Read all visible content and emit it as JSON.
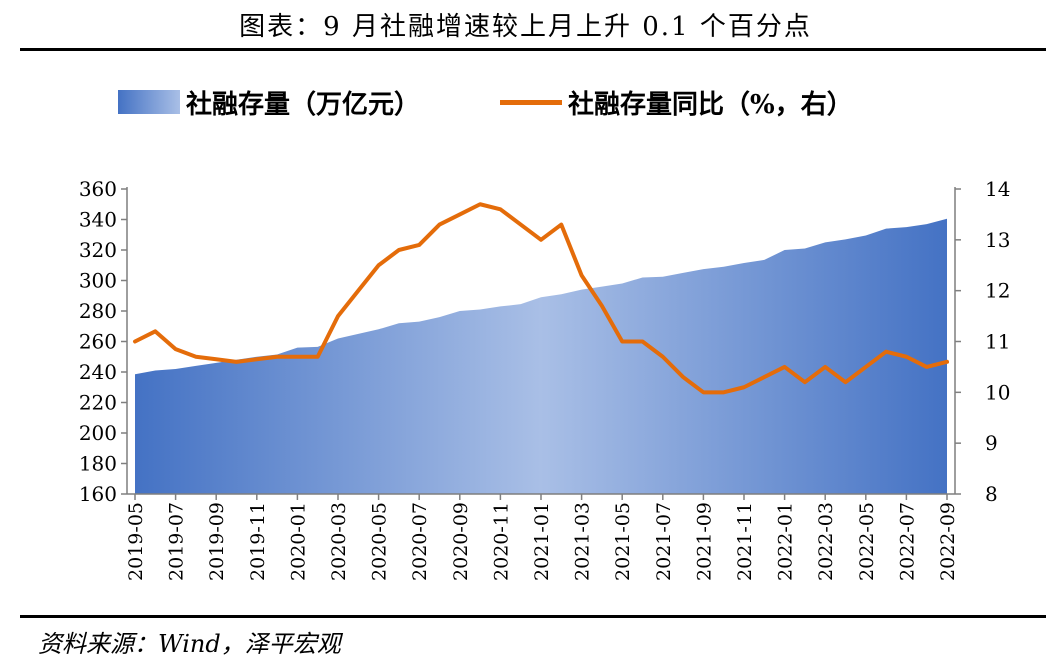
{
  "header": {
    "title": "图表：9 月社融增速较上月上升 0.1 个百分点"
  },
  "legend": {
    "area_label": "社融存量（万亿元）",
    "line_label": "社融存量同比（%，右）"
  },
  "footer": {
    "source": "资料来源：Wind，泽平宏观"
  },
  "colors": {
    "area_dark": "#4472c4",
    "area_light": "#a9bfe6",
    "line": "#e46c0a",
    "axis": "#7f7f7f"
  },
  "chart_data": {
    "type": "area",
    "categories": [
      "2019-05",
      "2019-06",
      "2019-07",
      "2019-08",
      "2019-09",
      "2019-10",
      "2019-11",
      "2019-12",
      "2020-01",
      "2020-02",
      "2020-03",
      "2020-04",
      "2020-05",
      "2020-06",
      "2020-07",
      "2020-08",
      "2020-09",
      "2020-10",
      "2020-11",
      "2020-12",
      "2021-01",
      "2021-02",
      "2021-03",
      "2021-04",
      "2021-05",
      "2021-06",
      "2021-07",
      "2021-08",
      "2021-09",
      "2021-10",
      "2021-11",
      "2021-12",
      "2022-01",
      "2022-02",
      "2022-03",
      "2022-04",
      "2022-05",
      "2022-06",
      "2022-07",
      "2022-08",
      "2022-09"
    ],
    "x_tick_labels": [
      "2019-05",
      "2019-07",
      "2019-09",
      "2019-11",
      "2020-01",
      "2020-03",
      "2020-05",
      "2020-07",
      "2020-09",
      "2020-11",
      "2021-01",
      "2021-03",
      "2021-05",
      "2021-07",
      "2021-09",
      "2021-11",
      "2022-01",
      "2022-03",
      "2022-05",
      "2022-07",
      "2022-09"
    ],
    "series": [
      {
        "name": "社融存量（万亿元）",
        "type": "area",
        "axis": "left",
        "values": [
          238.5,
          241,
          242,
          244,
          246,
          248,
          250,
          251.5,
          256,
          256.5,
          262,
          265,
          268,
          272,
          273,
          276,
          280,
          281,
          283,
          284.5,
          289,
          291,
          294,
          296,
          298,
          302,
          302.5,
          305,
          307.5,
          309,
          311.5,
          313.5,
          320,
          321,
          325,
          327,
          329.5,
          334,
          335,
          337,
          340.5
        ]
      },
      {
        "name": "社融存量同比（%，右）",
        "type": "line",
        "axis": "right",
        "values": [
          11.0,
          11.2,
          10.85,
          10.7,
          10.65,
          10.6,
          10.65,
          10.7,
          10.7,
          10.7,
          11.5,
          12.0,
          12.5,
          12.8,
          12.9,
          13.3,
          13.5,
          13.7,
          13.6,
          13.3,
          13.0,
          13.3,
          12.3,
          11.7,
          11.0,
          11.0,
          10.7,
          10.3,
          10.0,
          10.0,
          10.1,
          10.3,
          10.5,
          10.2,
          10.5,
          10.2,
          10.5,
          10.8,
          10.7,
          10.5,
          10.6
        ]
      }
    ],
    "y_left": {
      "min": 160,
      "max": 360,
      "step": 20,
      "ticks": [
        "160",
        "180",
        "200",
        "220",
        "240",
        "260",
        "280",
        "300",
        "320",
        "340",
        "360"
      ]
    },
    "y_right": {
      "min": 8,
      "max": 14,
      "step": 1,
      "ticks": [
        "8",
        "9",
        "10",
        "11",
        "12",
        "13",
        "14"
      ]
    },
    "grid": false,
    "legend_position": "top"
  }
}
